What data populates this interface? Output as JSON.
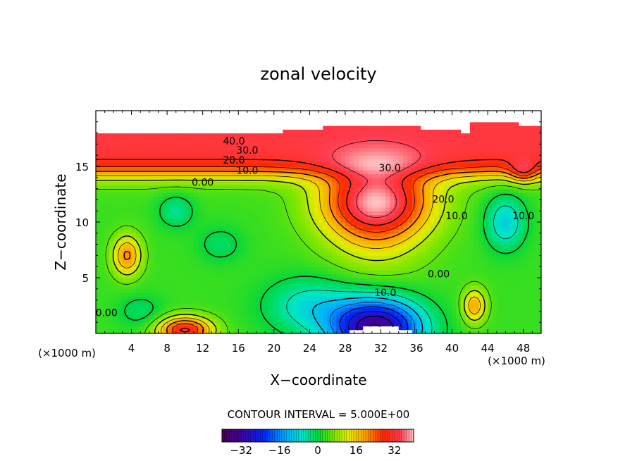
{
  "chart_data": {
    "type": "heatmap",
    "title": "zonal velocity",
    "xlabel": "X−coordinate",
    "ylabel": "Z−coordinate",
    "x_unit_left": "(×1000 m)",
    "x_unit_right": "(×1000 m)",
    "xlim": [
      0,
      50
    ],
    "ylim": [
      0,
      20
    ],
    "x_ticks": [
      4,
      8,
      12,
      16,
      20,
      24,
      28,
      32,
      36,
      40,
      44,
      48
    ],
    "y_ticks": [
      5,
      10,
      15
    ],
    "contour_interval_label": "CONTOUR INTERVAL = 5.000E+00",
    "contour_labels": [
      {
        "text": "40.0",
        "x": 15.5,
        "y": 17.2
      },
      {
        "text": "30.0",
        "x": 17.0,
        "y": 16.4
      },
      {
        "text": "20.0",
        "x": 15.5,
        "y": 15.5
      },
      {
        "text": "10.0",
        "x": 17.0,
        "y": 14.6
      },
      {
        "text": "0.00",
        "x": 12.0,
        "y": 13.5
      },
      {
        "text": "30.0",
        "x": 33.0,
        "y": 14.8
      },
      {
        "text": "20.0",
        "x": 39.0,
        "y": 12.0
      },
      {
        "text": "10.0",
        "x": 40.5,
        "y": 10.5
      },
      {
        "text": "10.0",
        "x": 48.0,
        "y": 10.5
      },
      {
        "text": "0.00",
        "x": 38.5,
        "y": 5.3
      },
      {
        "text": "10.0",
        "x": 32.5,
        "y": 3.6
      },
      {
        "text": "0.00",
        "x": 1.2,
        "y": 1.8
      }
    ],
    "field_features": [
      {
        "kind": "jet_max",
        "x": 31.5,
        "y": 12.0,
        "value": 36
      },
      {
        "kind": "surface_max",
        "x": 10.0,
        "y": 18.5,
        "value": 45
      },
      {
        "kind": "bottom_min",
        "x": 31.5,
        "y": 0.5,
        "value": -35
      },
      {
        "kind": "local_max",
        "x": 3.5,
        "y": 7.0,
        "value": 22
      },
      {
        "kind": "local_max",
        "x": 42.5,
        "y": 2.5,
        "value": 20
      },
      {
        "kind": "bottom_max",
        "x": 10.0,
        "y": 0.3,
        "value": 30
      }
    ],
    "colorbar": {
      "range": [
        -40,
        40
      ],
      "ticks": [
        -32,
        -16,
        0,
        16,
        32
      ],
      "tick_labels": [
        "−32",
        "−16",
        "0",
        "16",
        "32"
      ]
    }
  }
}
